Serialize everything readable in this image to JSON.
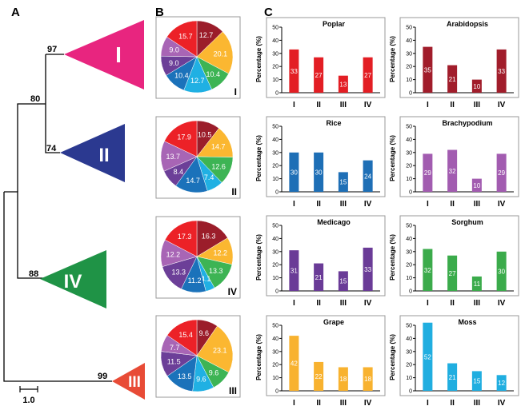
{
  "panels": {
    "A": "A",
    "B": "B",
    "C": "C"
  },
  "tree": {
    "scale_label": "1.0",
    "clades": [
      {
        "label": "I",
        "support": "97",
        "color": "#e8257f"
      },
      {
        "label": "II",
        "support": "74",
        "color": "#2b3990"
      },
      {
        "label": "IV",
        "support": "88",
        "color": "#1f9346"
      },
      {
        "label": "III",
        "support": "99",
        "color": "#e84b36"
      }
    ],
    "internal_support": [
      "80"
    ]
  },
  "pie_colors": [
    "#9b1d2a",
    "#fbb731",
    "#3db454",
    "#20b0e3",
    "#1b72ba",
    "#6c3f98",
    "#a865b5",
    "#ec2127"
  ],
  "pies": [
    {
      "label": "I",
      "values": [
        12.7,
        20.1,
        10.4,
        12.7,
        10.4,
        9.0,
        9.0,
        15.7
      ]
    },
    {
      "label": "II",
      "values": [
        10.5,
        14.7,
        12.6,
        7.4,
        14.7,
        8.4,
        13.7,
        17.9
      ]
    },
    {
      "label": "IV",
      "values": [
        16.3,
        12.2,
        13.3,
        4.1,
        11.2,
        13.3,
        12.2,
        17.3
      ]
    },
    {
      "label": "III",
      "values": [
        9.6,
        23.1,
        9.6,
        9.6,
        13.5,
        11.5,
        7.7,
        15.4
      ]
    }
  ],
  "chart_data": {
    "type": "bar",
    "categories": [
      "I",
      "II",
      "III",
      "IV"
    ],
    "ylabel": "Percentage (%)",
    "yticks": [
      0,
      10,
      20,
      30,
      40,
      50
    ],
    "ylim": [
      0,
      50
    ],
    "charts": [
      {
        "title": "Poplar",
        "color": "#e31e24",
        "values": [
          33,
          27,
          13,
          27
        ]
      },
      {
        "title": "Arabidopsis",
        "color": "#a11d2b",
        "values": [
          35,
          21,
          10,
          33
        ]
      },
      {
        "title": "Rice",
        "color": "#1e6fb6",
        "values": [
          30,
          30,
          15,
          24
        ]
      },
      {
        "title": "Brachypodium",
        "color": "#a25cb0",
        "values": [
          29,
          32,
          10,
          29
        ]
      },
      {
        "title": "Medicago",
        "color": "#6a3b97",
        "values": [
          31,
          21,
          15,
          33
        ]
      },
      {
        "title": "Sorghum",
        "color": "#3bab4b",
        "values": [
          32,
          27,
          11,
          30
        ]
      },
      {
        "title": "Grape",
        "color": "#f8b22f",
        "values": [
          42,
          22,
          18,
          18
        ]
      },
      {
        "title": "Moss",
        "color": "#20aee0",
        "values": [
          52,
          21,
          15,
          12
        ]
      }
    ]
  }
}
